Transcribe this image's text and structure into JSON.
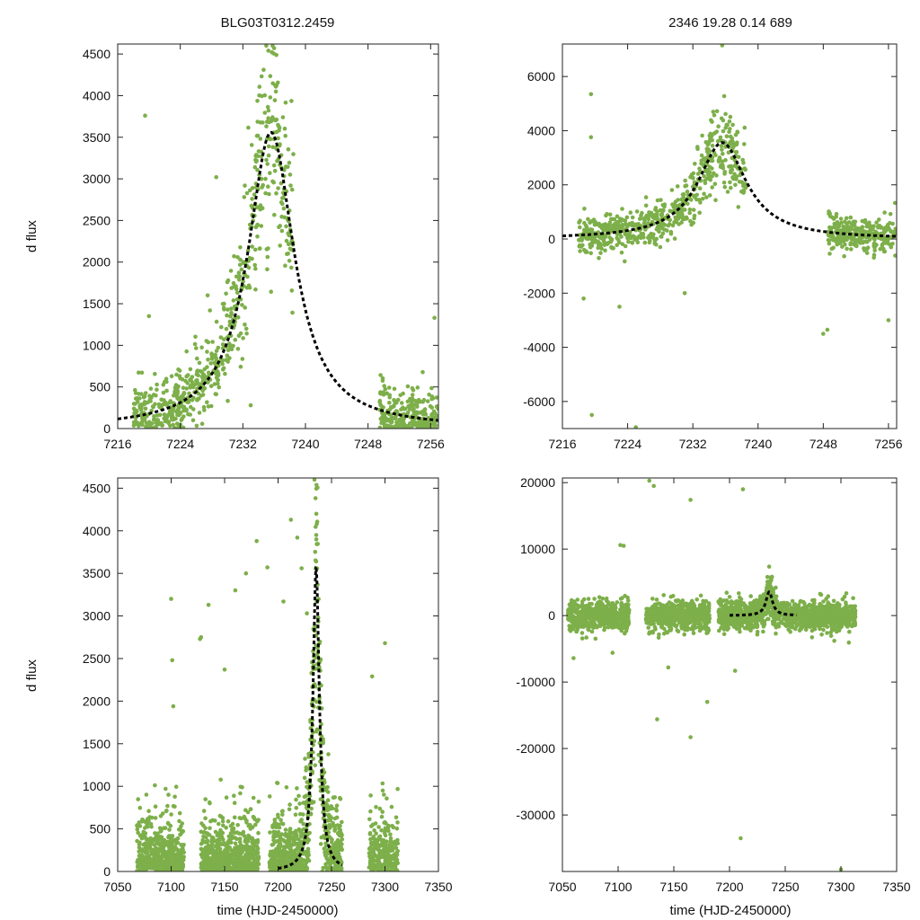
{
  "colors": {
    "points": "#7daf4a",
    "model": "#000000",
    "axis": "#222222"
  },
  "model": {
    "t0": 7235.6,
    "peak": 3560,
    "tau": 3.6
  },
  "chart_data": [
    {
      "id": "top-left",
      "type": "scatter",
      "title": "BLG03T0312.2459",
      "ylabel": "d flux",
      "xlabel": "",
      "xlim": [
        7216,
        7257
      ],
      "ylim": [
        0,
        4620
      ],
      "xticks": [
        7216,
        7224,
        7232,
        7240,
        7248,
        7256
      ],
      "yticks": [
        0,
        500,
        1000,
        1500,
        2000,
        2500,
        3000,
        3500,
        4000,
        4500
      ],
      "ytick_labels": [
        "0",
        "500",
        "1000",
        "1500",
        "2000",
        "2500",
        "3000",
        "3500",
        "4000",
        "4500"
      ],
      "cluster": {
        "x_start": 7218.0,
        "x_end": 7257,
        "base_noise": 160,
        "count": 900,
        "sigma_rel": 0.14,
        "gaps": [
          [
            7238.5,
            7249.5
          ]
        ]
      },
      "outliers": [
        [
          7219.5,
          3760
        ],
        [
          7220.0,
          1350
        ],
        [
          7228.6,
          3020
        ],
        [
          7227.5,
          1600
        ],
        [
          7227.8,
          1420
        ],
        [
          7230.5,
          1440
        ],
        [
          7256.5,
          1330
        ],
        [
          7233.0,
          280
        ],
        [
          7235.0,
          4600
        ],
        [
          7236.0,
          4570
        ]
      ]
    },
    {
      "id": "top-right",
      "type": "scatter",
      "title": "2346  19.28  0.14  689",
      "ylabel": "",
      "xlabel": "",
      "xlim": [
        7216,
        7257
      ],
      "ylim": [
        -7000,
        7200
      ],
      "xticks": [
        7216,
        7224,
        7232,
        7240,
        7248,
        7256
      ],
      "yticks": [
        -6000,
        -4000,
        -2000,
        0,
        2000,
        4000,
        6000
      ],
      "ytick_labels": [
        "-6000",
        "-4000",
        "-2000",
        "0",
        "2000",
        "4000",
        "6000"
      ],
      "cluster": {
        "x_start": 7218.0,
        "x_end": 7257,
        "base_noise": 300,
        "count": 900,
        "sigma_rel": 0.15,
        "gaps": [
          [
            7238.5,
            7248.5
          ]
        ]
      },
      "outliers": [
        [
          7219.5,
          5350
        ],
        [
          7219.5,
          3760
        ],
        [
          7219.6,
          -6500
        ],
        [
          7225.0,
          -6950
        ],
        [
          7235.6,
          7150
        ],
        [
          7248.0,
          -3500
        ],
        [
          7248.5,
          -3350
        ],
        [
          7218.6,
          -2200
        ],
        [
          7223.0,
          -2500
        ],
        [
          7231.0,
          -2000
        ],
        [
          7256.0,
          -3000
        ],
        [
          7256.8,
          1330
        ]
      ]
    },
    {
      "id": "bottom-left",
      "type": "scatter",
      "title": "",
      "ylabel": "d flux",
      "xlabel": "time (HJD-2450000)",
      "xlim": [
        7050,
        7350
      ],
      "ylim": [
        0,
        4620
      ],
      "xticks": [
        7050,
        7100,
        7150,
        7200,
        7250,
        7300,
        7350
      ],
      "yticks": [
        0,
        500,
        1000,
        1500,
        2000,
        2500,
        3000,
        3500,
        4000,
        4500
      ],
      "ytick_labels": [
        "0",
        "500",
        "1000",
        "1500",
        "2000",
        "2500",
        "3000",
        "3500",
        "4000",
        "4500"
      ],
      "cluster": {
        "x_start": 7068,
        "x_end": 7312,
        "base_noise": 340,
        "count": 2200,
        "sigma_rel": 0.14,
        "gaps": [
          [
            7112,
            7128
          ],
          [
            7182,
            7192
          ],
          [
            7260,
            7285
          ]
        ]
      },
      "outliers": [
        [
          7100,
          3200
        ],
        [
          7101,
          2480
        ],
        [
          7102,
          1940
        ],
        [
          7128,
          2750
        ],
        [
          7127,
          2730
        ],
        [
          7135,
          3130
        ],
        [
          7150,
          2370
        ],
        [
          7160,
          3300
        ],
        [
          7170,
          3500
        ],
        [
          7180,
          3880
        ],
        [
          7190,
          3570
        ],
        [
          7205,
          3170
        ],
        [
          7212,
          4130
        ],
        [
          7218,
          3920
        ],
        [
          7222,
          3560
        ],
        [
          7227,
          3030
        ],
        [
          7234,
          4600
        ],
        [
          7288,
          2290
        ],
        [
          7300,
          2680
        ],
        [
          7070,
          540
        ]
      ]
    },
    {
      "id": "bottom-right",
      "type": "scatter",
      "title": "",
      "ylabel": "",
      "xlabel": "time (HJD-2450000)",
      "xlim": [
        7050,
        7350
      ],
      "ylim": [
        -38500,
        20700
      ],
      "xticks": [
        7050,
        7100,
        7150,
        7200,
        7250,
        7300,
        7350
      ],
      "yticks": [
        -30000,
        -20000,
        -10000,
        0,
        10000,
        20000
      ],
      "ytick_labels": [
        "-30000",
        "-20000",
        "-10000",
        "0",
        "10000",
        "20000"
      ],
      "cluster": {
        "x_start": 7055,
        "x_end": 7313,
        "base_noise": 1100,
        "count": 2400,
        "sigma_rel": 0.18,
        "gaps": [
          [
            7110,
            7125
          ],
          [
            7182,
            7190
          ]
        ]
      },
      "outliers": [
        [
          7102,
          10600
        ],
        [
          7105,
          10500
        ],
        [
          7128,
          20300
        ],
        [
          7132,
          19500
        ],
        [
          7165,
          17400
        ],
        [
          7212,
          19000
        ],
        [
          7135,
          -15600
        ],
        [
          7165,
          -18300
        ],
        [
          7180,
          -13000
        ],
        [
          7210,
          -33500
        ],
        [
          7300,
          -38200
        ],
        [
          7095,
          -5600
        ],
        [
          7205,
          -8300
        ],
        [
          7145,
          -7800
        ],
        [
          7060,
          -6400
        ]
      ]
    }
  ]
}
